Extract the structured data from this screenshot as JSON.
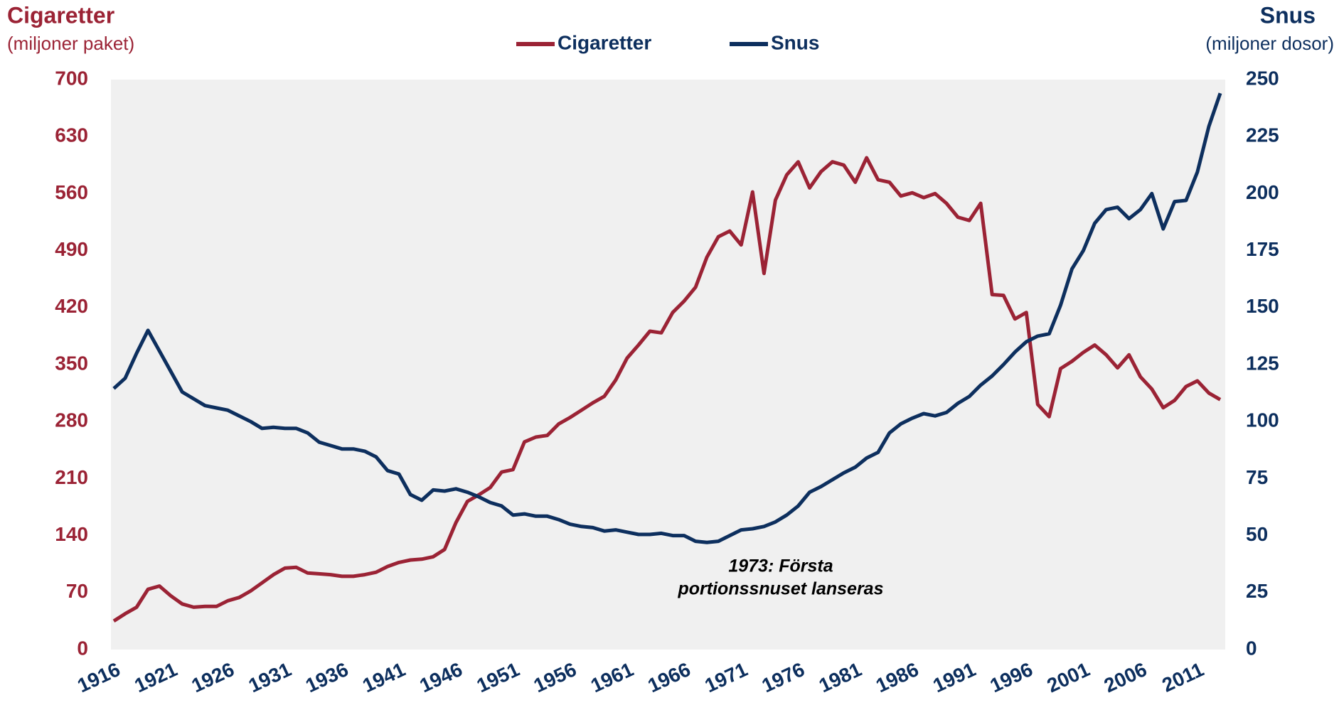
{
  "chart_data": {
    "type": "line",
    "left_title": "Cigaretter",
    "left_subtitle": "(miljoner paket)",
    "right_title": "Snus",
    "right_subtitle": "(miljoner dosor)",
    "annotation": [
      "1973: Första",
      "portionssnuset lanseras"
    ],
    "x": [
      1916,
      1917,
      1918,
      1919,
      1920,
      1921,
      1922,
      1923,
      1924,
      1925,
      1926,
      1927,
      1928,
      1929,
      1930,
      1931,
      1932,
      1933,
      1934,
      1935,
      1936,
      1937,
      1938,
      1939,
      1940,
      1941,
      1942,
      1943,
      1944,
      1945,
      1946,
      1947,
      1948,
      1949,
      1950,
      1951,
      1952,
      1953,
      1954,
      1955,
      1956,
      1957,
      1958,
      1959,
      1960,
      1961,
      1962,
      1963,
      1964,
      1965,
      1966,
      1967,
      1968,
      1969,
      1970,
      1971,
      1972,
      1973,
      1974,
      1975,
      1976,
      1977,
      1978,
      1979,
      1980,
      1981,
      1982,
      1983,
      1984,
      1985,
      1986,
      1987,
      1988,
      1989,
      1990,
      1991,
      1992,
      1993,
      1994,
      1995,
      1996,
      1997,
      1998,
      1999,
      2000,
      2001,
      2002,
      2003,
      2004,
      2005,
      2006,
      2007,
      2008,
      2009,
      2010,
      2011,
      2012,
      2013
    ],
    "xlim": [
      1916,
      2013
    ],
    "xticks": [
      1916,
      1921,
      1926,
      1931,
      1936,
      1941,
      1946,
      1951,
      1956,
      1961,
      1966,
      1971,
      1976,
      1981,
      1986,
      1991,
      1996,
      2001,
      2006,
      2011
    ],
    "ylim": [
      0,
      700
    ],
    "yticks": [
      0,
      70,
      140,
      210,
      280,
      350,
      420,
      490,
      560,
      630,
      700
    ],
    "y2lim": [
      0,
      250
    ],
    "y2ticks": [
      0,
      25,
      50,
      75,
      100,
      125,
      150,
      175,
      200,
      225,
      250
    ],
    "series": [
      {
        "name": "Cigaretter",
        "color": "#9b2335",
        "axis": "y",
        "values": [
          35,
          44,
          52,
          74,
          78,
          66,
          56,
          52,
          53,
          53,
          60,
          64,
          72,
          82,
          92,
          100,
          101,
          94,
          93,
          92,
          90,
          90,
          92,
          95,
          102,
          107,
          110,
          111,
          114,
          123,
          156,
          182,
          190,
          199,
          218,
          221,
          255,
          261,
          263,
          277,
          285,
          294,
          303,
          311,
          331,
          358,
          374,
          391,
          389,
          414,
          428,
          445,
          482,
          507,
          514,
          497,
          562,
          462,
          552,
          583,
          599,
          567,
          587,
          599,
          595,
          574,
          604,
          577,
          574,
          557,
          561,
          555,
          560,
          548,
          531,
          527,
          548,
          436,
          435,
          406,
          414,
          301,
          286,
          345,
          354,
          365,
          374,
          362,
          346,
          362,
          335,
          320,
          297,
          306,
          323,
          330,
          315,
          307
        ]
      },
      {
        "name": "Snus",
        "color": "#0d2f5e",
        "axis": "y2",
        "values": [
          114.5,
          119,
          130,
          140,
          131,
          122,
          113,
          110,
          107,
          106,
          105,
          102.5,
          100,
          97,
          97.5,
          97,
          97,
          95,
          91,
          89.5,
          88,
          88,
          87,
          84.5,
          78.5,
          77,
          68,
          65.5,
          70,
          69.5,
          70.5,
          69,
          67,
          64.5,
          63,
          59,
          59.5,
          58.5,
          58.5,
          57,
          55,
          54,
          53.5,
          52,
          52.5,
          51.5,
          50.5,
          50.5,
          51,
          50,
          50,
          47.5,
          47,
          47.5,
          50,
          52.5,
          53,
          54,
          56,
          59,
          63,
          69,
          71.5,
          74.5,
          77.5,
          80,
          84,
          86.5,
          95,
          99,
          101.5,
          103.5,
          102.5,
          104,
          108,
          111,
          116,
          120,
          125,
          130.5,
          135,
          137.5,
          138.5,
          151,
          167,
          175,
          187,
          193,
          194,
          189,
          193,
          200,
          184.5,
          196.5,
          197,
          209.5,
          229.5,
          244
        ]
      }
    ]
  }
}
